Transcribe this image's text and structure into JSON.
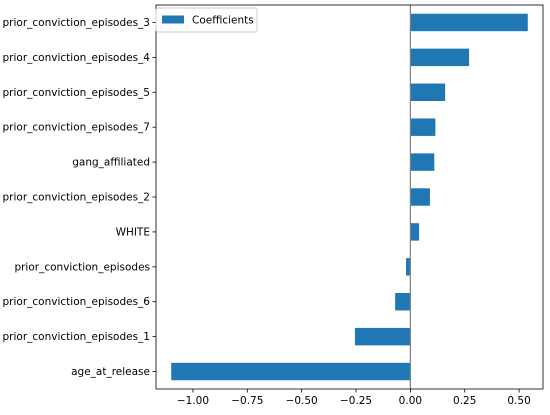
{
  "chart_data": {
    "type": "bar",
    "orientation": "horizontal",
    "categories": [
      "prior_conviction_episodes_3",
      "prior_conviction_episodes_4",
      "prior_conviction_episodes_5",
      "prior_conviction_episodes_7",
      "gang_affiliated",
      "prior_conviction_episodes_2",
      "WHITE",
      "prior_conviction_episodes",
      "prior_conviction_episodes_6",
      "prior_conviction_episodes_1",
      "age_at_release"
    ],
    "series": [
      {
        "name": "Coefficients",
        "values": [
          0.54,
          0.27,
          0.16,
          0.115,
          0.11,
          0.09,
          0.04,
          -0.02,
          -0.07,
          -0.255,
          -1.1
        ],
        "color": "#1f77b4"
      }
    ],
    "x_ticks": [
      -1.0,
      -0.75,
      -0.5,
      -0.25,
      0.0,
      0.25,
      0.5
    ],
    "x_tick_labels": [
      "−1.00",
      "−0.75",
      "−0.50",
      "−0.25",
      "0.00",
      "0.25",
      "0.50"
    ],
    "xlim": [
      -1.17,
      0.61
    ],
    "zero_line": true,
    "zero_line_color": "#808080",
    "grid": false,
    "legend_position": "top-left",
    "title": "",
    "xlabel": "",
    "ylabel": ""
  }
}
